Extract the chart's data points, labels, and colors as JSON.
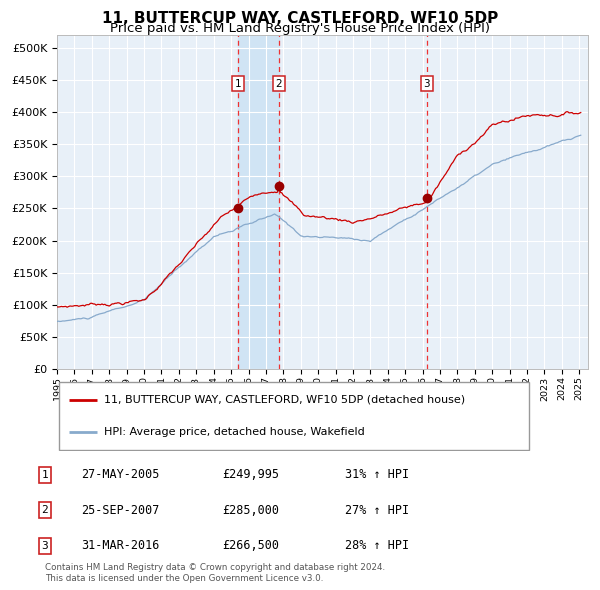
{
  "title": "11, BUTTERCUP WAY, CASTLEFORD, WF10 5DP",
  "subtitle": "Price paid vs. HM Land Registry's House Price Index (HPI)",
  "legend_line1": "11, BUTTERCUP WAY, CASTLEFORD, WF10 5DP (detached house)",
  "legend_line2": "HPI: Average price, detached house, Wakefield",
  "footer1": "Contains HM Land Registry data © Crown copyright and database right 2024.",
  "footer2": "This data is licensed under the Open Government Licence v3.0.",
  "transactions": [
    {
      "num": 1,
      "date": "27-MAY-2005",
      "price": 249995,
      "price_str": "£249,995",
      "hpi_pct": "31% ↑ HPI",
      "x": 2005.38
    },
    {
      "num": 2,
      "date": "25-SEP-2007",
      "price": 285000,
      "price_str": "£285,000",
      "hpi_pct": "27% ↑ HPI",
      "x": 2007.73
    },
    {
      "num": 3,
      "date": "31-MAR-2016",
      "price": 266500,
      "price_str": "£266,500",
      "hpi_pct": "28% ↑ HPI",
      "x": 2016.25
    }
  ],
  "ylim": [
    0,
    520000
  ],
  "xlim_start": 1995.0,
  "xlim_end": 2025.5,
  "plot_bg_color": "#e8f0f8",
  "grid_color": "#ffffff",
  "red_line_color": "#cc0000",
  "blue_line_color": "#88aacc",
  "marker_color": "#990000",
  "dashed_line_color": "#ee3333",
  "box_color": "#cc2222",
  "span_color": "#d0e4f4",
  "title_fontsize": 11,
  "subtitle_fontsize": 9.5
}
